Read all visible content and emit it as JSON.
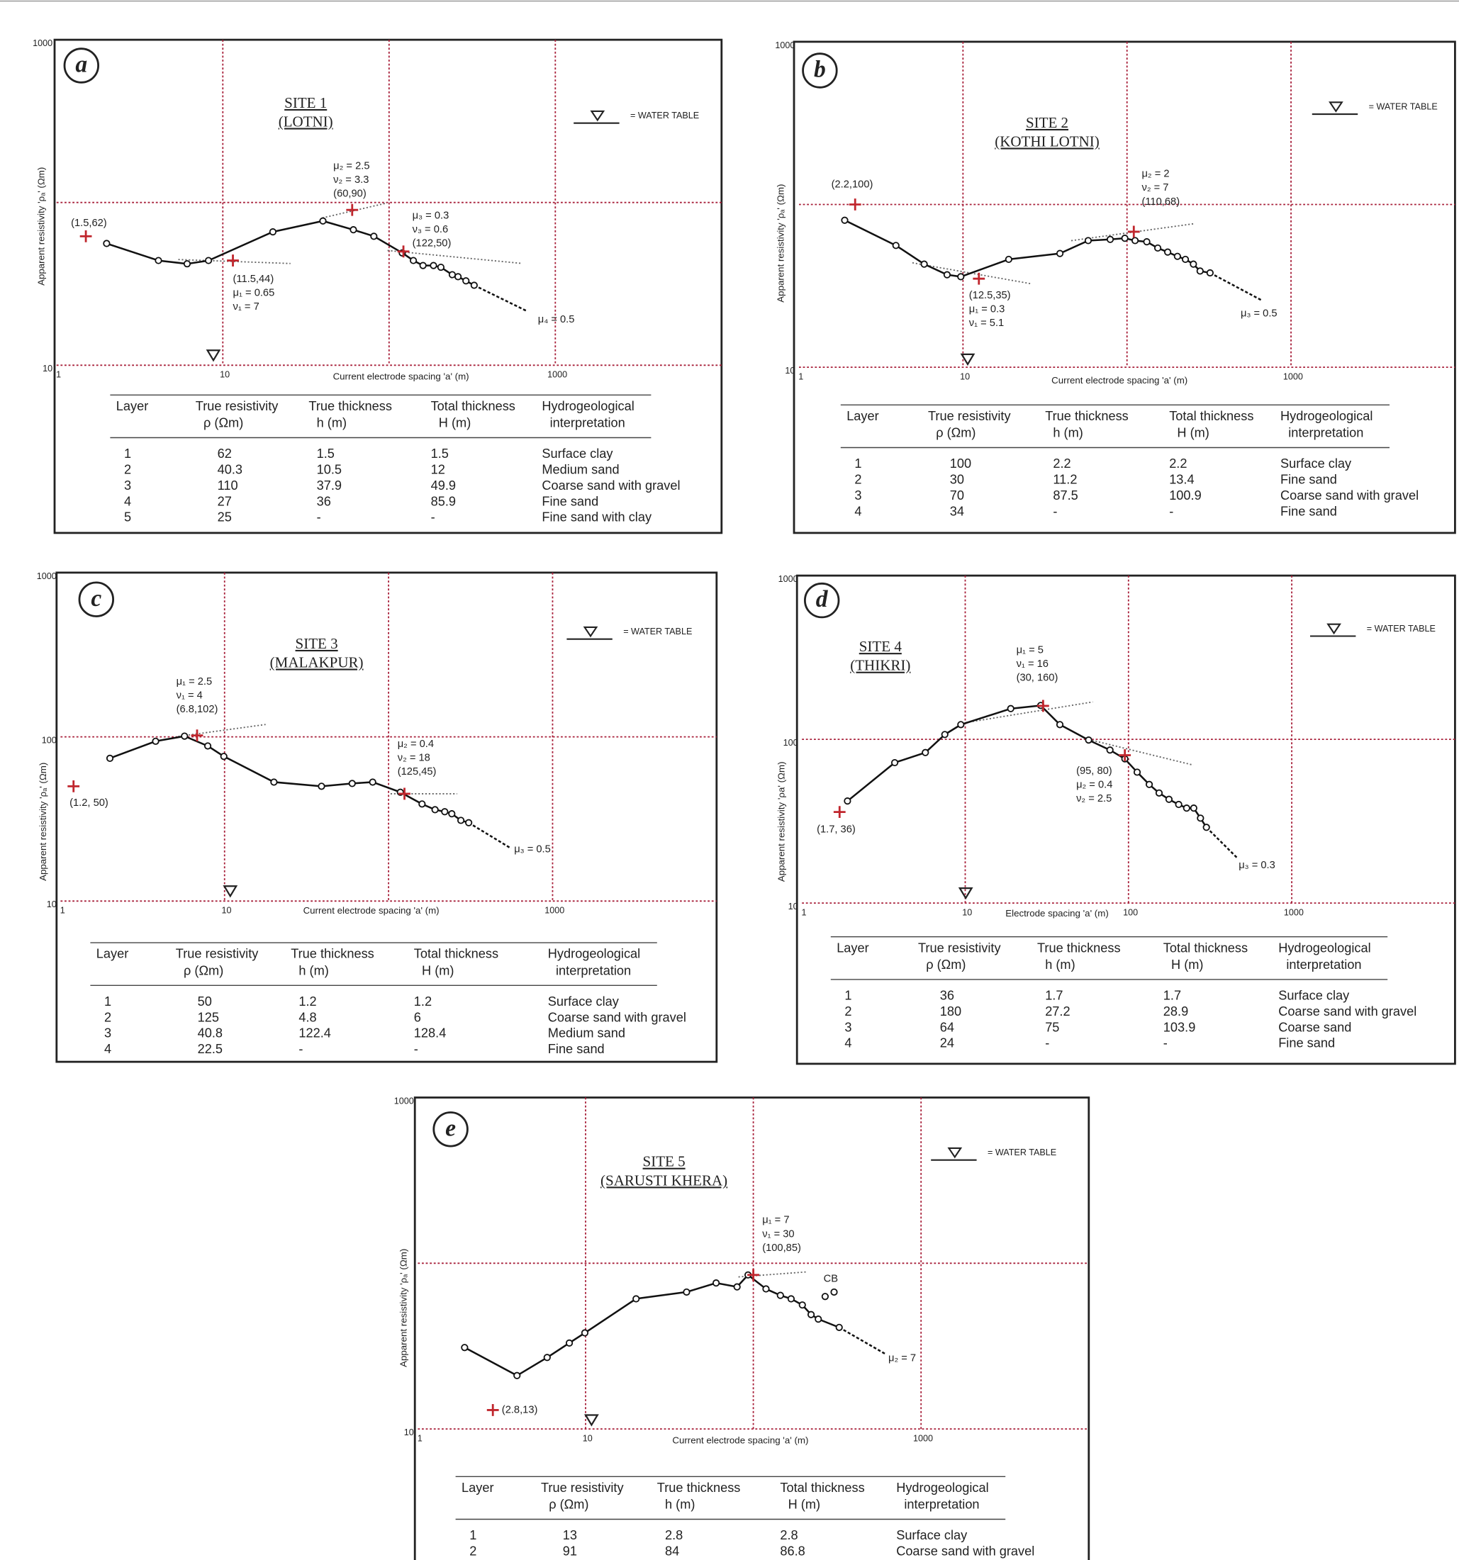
{
  "chart_data": [
    {
      "type": "scatter",
      "panel": "a",
      "title": [
        "SITE 1",
        "(LOTNI)"
      ],
      "xlabel": "Current electrode spacing 'a' (m)",
      "ylabel": "Apparent resistivity 'ρₐ' (Ωm)",
      "log_scale": true,
      "xlim": [
        1,
        10000
      ],
      "ylim": [
        10,
        1000
      ],
      "xticks": [
        1,
        10,
        1000
      ],
      "yticks": [
        10,
        1000
      ],
      "xgrid": [
        10,
        100,
        1000
      ],
      "ygrid": [
        100
      ],
      "color": "#111111",
      "marker_color": "#c0262d",
      "grid_color": "#a8203a",
      "legend": "= WATER TABLE",
      "x": [
        2,
        4.1,
        6.1,
        8.2,
        20,
        40,
        61,
        81,
        120,
        140,
        160,
        185,
        205,
        240,
        260,
        290,
        325
      ],
      "values": [
        56,
        44,
        42,
        44,
        66,
        77,
        68,
        62,
        49,
        44,
        41,
        41,
        40,
        36,
        35,
        33,
        31
      ],
      "markers": [
        {
          "x": 1.5,
          "y": 62,
          "notes": [
            "(1.5,62)"
          ]
        },
        {
          "x": 11.5,
          "y": 44,
          "notes": [
            "(11.5,44)",
            "μ₁ = 0.65",
            "ν₁ = 7"
          ]
        },
        {
          "x": 60,
          "y": 90,
          "notes": [
            "μ₂ = 2.5",
            "ν₂ = 3.3",
            "(60,90)"
          ]
        },
        {
          "x": 122,
          "y": 50,
          "notes": [
            "μ₃ = 0.3",
            "ν₃ = 0.6",
            "(122,50)"
          ]
        }
      ],
      "tail_label": "μ₄ = 0.5",
      "table": {
        "header": [
          [
            "Layer"
          ],
          [
            "True resistivity",
            "ρ (Ωm)"
          ],
          [
            "True thickness",
            "h (m)"
          ],
          [
            "Total thickness",
            "H (m)"
          ],
          [
            "Hydrogeological",
            "interpretation"
          ]
        ],
        "rows": [
          [
            1,
            62,
            1.5,
            1.5,
            "Surface clay"
          ],
          [
            2,
            40.3,
            10.5,
            12,
            "Medium sand"
          ],
          [
            3,
            110,
            37.9,
            49.9,
            "Coarse sand with gravel"
          ],
          [
            4,
            27,
            36,
            85.9,
            "Fine sand"
          ],
          [
            5,
            25,
            "-",
            "-",
            "Fine sand with clay"
          ]
        ]
      }
    },
    {
      "type": "scatter",
      "panel": "b",
      "title": [
        "SITE 2",
        "(KOTHI LOTNI)"
      ],
      "xlabel": "Current electrode spacing 'a' (m)",
      "ylabel": "Apparent resistivity 'ρₐ' (Ωm)",
      "log_scale": true,
      "xlim": [
        1,
        10000
      ],
      "ylim": [
        10,
        1000
      ],
      "xticks": [
        1,
        10,
        1000
      ],
      "yticks": [
        10,
        1000
      ],
      "xgrid": [
        10,
        100,
        1000
      ],
      "ygrid": [
        100
      ],
      "color": "#111111",
      "marker_color": "#c0262d",
      "grid_color": "#a8203a",
      "legend": "= WATER TABLE",
      "x": [
        1.9,
        3.9,
        5.8,
        8,
        9.7,
        19,
        39,
        58,
        79,
        97,
        112,
        132,
        154,
        177,
        203,
        227,
        254,
        279,
        321
      ],
      "values": [
        80,
        56,
        43,
        37,
        36,
        46,
        50,
        60,
        61,
        62,
        60,
        59,
        54,
        51,
        48,
        46,
        43,
        39,
        38
      ],
      "markers": [
        {
          "x": 2.2,
          "y": 100,
          "notes": [
            "(2.2,100)"
          ]
        },
        {
          "x": 12.5,
          "y": 35,
          "notes": [
            "(12.5,35)",
            "μ₁ = 0.3",
            "ν₁ = 5.1"
          ]
        },
        {
          "x": 110,
          "y": 68,
          "notes": [
            "μ₂ = 2",
            "ν₂ = 7",
            "(110,68)"
          ]
        }
      ],
      "tail_label": "μ₃ = 0.5",
      "table": {
        "header": [
          [
            "Layer"
          ],
          [
            "True resistivity",
            "ρ (Ωm)"
          ],
          [
            "True thickness",
            "h (m)"
          ],
          [
            "Total thickness",
            "H (m)"
          ],
          [
            "Hydrogeological",
            "interpretation"
          ]
        ],
        "rows": [
          [
            1,
            100,
            2.2,
            2.2,
            "Surface clay"
          ],
          [
            2,
            30,
            11.2,
            13.4,
            "Fine sand"
          ],
          [
            3,
            70,
            87.5,
            100.9,
            "Coarse sand with gravel"
          ],
          [
            4,
            34,
            "-",
            "-",
            "Fine sand"
          ]
        ]
      }
    },
    {
      "type": "scatter",
      "panel": "c",
      "title": [
        "SITE 3",
        "(MALAKPUR)"
      ],
      "xlabel": "Current electrode spacing 'a' (m)",
      "ylabel": "Apparent resistivity 'ρₐ' (Ωm)",
      "log_scale": true,
      "xlim": [
        1,
        10000
      ],
      "ylim": [
        10,
        1000
      ],
      "xticks": [
        1,
        10,
        1000
      ],
      "yticks": [
        10,
        100,
        1000
      ],
      "xgrid": [
        10,
        100,
        1000
      ],
      "ygrid": [
        100
      ],
      "color": "#111111",
      "marker_color": "#c0262d",
      "grid_color": "#a8203a",
      "legend": "= WATER TABLE",
      "x": [
        2,
        3.8,
        5.7,
        7.9,
        9.9,
        20,
        39,
        60,
        80,
        118,
        160,
        192,
        220,
        243,
        276,
        308
      ],
      "values": [
        74,
        94,
        101,
        88,
        76,
        53,
        50,
        52,
        53,
        46,
        39,
        36,
        35,
        34,
        31,
        30
      ],
      "markers": [
        {
          "x": 1.2,
          "y": 50,
          "notes": [
            "(1.2, 50)"
          ]
        },
        {
          "x": 6.8,
          "y": 102,
          "notes": [
            "μ₁ = 2.5",
            "ν₁ = 4",
            "(6.8,102)"
          ]
        },
        {
          "x": 125,
          "y": 45,
          "notes": [
            "μ₂ = 0.4",
            "ν₂ = 18",
            "(125,45)"
          ]
        }
      ],
      "tail_label": "μ₃ = 0.5",
      "table": {
        "header": [
          [
            "Layer"
          ],
          [
            "True resistivity",
            "ρ (Ωm)"
          ],
          [
            "True thickness",
            "h (m)"
          ],
          [
            "Total thickness",
            "H (m)"
          ],
          [
            "Hydrogeological",
            "interpretation"
          ]
        ],
        "rows": [
          [
            1,
            50,
            1.2,
            1.2,
            "Surface clay"
          ],
          [
            2,
            125,
            4.8,
            6,
            "Coarse sand with gravel"
          ],
          [
            3,
            40.8,
            122.4,
            128.4,
            "Medium sand"
          ],
          [
            4,
            22.5,
            "-",
            "-",
            "Fine sand"
          ]
        ]
      }
    },
    {
      "type": "scatter",
      "panel": "d",
      "title": [
        "SITE 4",
        "(THIKRI)"
      ],
      "xlabel": "Electrode spacing 'a' (m)",
      "ylabel": "Apparent resistivity 'ρa' (Ωm)",
      "log_scale": true,
      "xlim": [
        1,
        10000
      ],
      "ylim": [
        10,
        1000
      ],
      "xticks": [
        1,
        10,
        100,
        1000
      ],
      "yticks": [
        10,
        100,
        1000
      ],
      "xgrid": [
        10,
        100,
        1000
      ],
      "ygrid": [
        100
      ],
      "color": "#111111",
      "marker_color": "#c0262d",
      "grid_color": "#a8203a",
      "legend": "= WATER TABLE",
      "x": [
        1.9,
        3.7,
        5.7,
        7.5,
        9.4,
        19,
        29,
        38,
        57,
        77,
        95,
        113,
        134,
        154,
        177,
        203,
        227,
        251,
        276,
        300
      ],
      "values": [
        42,
        72,
        83,
        107,
        123,
        154,
        161,
        123,
        99,
        86,
        76,
        63,
        53,
        47,
        43,
        40,
        38,
        38,
        33,
        29
      ],
      "markers": [
        {
          "x": 1.7,
          "y": 36,
          "notes": [
            "(1.7, 36)"
          ]
        },
        {
          "x": 30,
          "y": 160,
          "notes": [
            "μ₁ = 5",
            "ν₁ = 16",
            "(30, 160)"
          ]
        },
        {
          "x": 95,
          "y": 80,
          "notes": [
            "(95, 80)",
            "μ₂ = 0.4",
            "ν₂ = 2.5"
          ]
        }
      ],
      "tail_label": "μ₃ = 0.3",
      "table": {
        "header": [
          [
            "Layer"
          ],
          [
            "True resistivity",
            "ρ (Ωm)"
          ],
          [
            "True thickness",
            "h (m)"
          ],
          [
            "Total thickness",
            "H (m)"
          ],
          [
            "Hydrogeological",
            "interpretation"
          ]
        ],
        "rows": [
          [
            1,
            36,
            1.7,
            1.7,
            "Surface clay"
          ],
          [
            2,
            180,
            27.2,
            28.9,
            "Coarse sand with gravel"
          ],
          [
            3,
            64,
            75,
            103.9,
            "Coarse sand"
          ],
          [
            4,
            24,
            "-",
            "-",
            "Fine sand"
          ]
        ]
      }
    },
    {
      "type": "scatter",
      "panel": "e",
      "title": [
        "SITE 5",
        "(SARUSTI KHERA)"
      ],
      "xlabel": "Current electrode spacing 'a' (m)",
      "ylabel": "Apparent resistivity 'ρₐ' (Ωm)",
      "log_scale": true,
      "xlim": [
        1,
        10000
      ],
      "ylim": [
        10,
        1000
      ],
      "xticks": [
        1,
        10,
        1000
      ],
      "yticks": [
        10,
        1000
      ],
      "xgrid": [
        10,
        100,
        1000
      ],
      "ygrid": [
        100
      ],
      "color": "#111111",
      "marker_color": "#c0262d",
      "grid_color": "#a8203a",
      "legend": "= WATER TABLE",
      "x": [
        1.9,
        3.9,
        5.9,
        8,
        9.9,
        20,
        40,
        60,
        80,
        93,
        119,
        145,
        168,
        196,
        221,
        244,
        325
      ],
      "values": [
        31,
        21,
        27,
        33,
        38,
        61,
        67,
        76,
        72,
        85,
        70,
        64,
        61,
        56,
        49,
        46,
        41
      ],
      "cb": {
        "label": "CB",
        "x": [
          268,
          303
        ],
        "values": [
          63,
          67
        ]
      },
      "markers": [
        {
          "x": 2.8,
          "y": 13,
          "notes": [
            "(2.8,13)"
          ]
        },
        {
          "x": 100,
          "y": 85,
          "notes": [
            "μ₁ = 7",
            "ν₁ = 30",
            "(100,85)"
          ]
        }
      ],
      "tail_label": "μ₂ = 7",
      "table": {
        "header": [
          [
            "Layer"
          ],
          [
            "True resistivity",
            "ρ (Ωm)"
          ],
          [
            "True thickness",
            "h (m)"
          ],
          [
            "Total thickness",
            "H (m)"
          ],
          [
            "Hydrogeological",
            "interpretation"
          ]
        ],
        "rows": [
          [
            1,
            13,
            2.8,
            2.8,
            "Surface clay"
          ],
          [
            2,
            91,
            84,
            86.8,
            "Coarse sand with gravel"
          ]
        ]
      }
    }
  ]
}
